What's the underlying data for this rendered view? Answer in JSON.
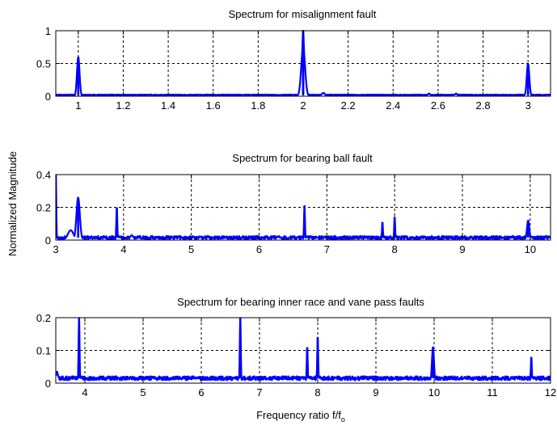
{
  "figure": {
    "ylabel": "Normalized Magnitude",
    "xlabel_main": "Frequency ratio f/f",
    "xlabel_sub": "o"
  },
  "chart_data": [
    {
      "type": "line",
      "title": "Spectrum for misalignment fault",
      "xlim": [
        0.9,
        3.1
      ],
      "ylim": [
        0,
        1
      ],
      "xticks": [
        1,
        1.2,
        1.4,
        1.6,
        1.8,
        2,
        2.2,
        2.4,
        2.6,
        2.8,
        3
      ],
      "xtick_labels": [
        "1",
        "1.2",
        "1.4",
        "1.6",
        "1.8",
        "2",
        "2.2",
        "2.4",
        "2.6",
        "2.8",
        "3"
      ],
      "yticks": [
        0,
        0.5,
        1
      ],
      "ytick_labels": [
        "0",
        "0.5",
        "1"
      ],
      "grid": true,
      "color": "#0000ff",
      "baseline": 0.02,
      "noise": 0.006,
      "peaks": [
        {
          "x": 1.0,
          "y": 0.6,
          "width": 0.008
        },
        {
          "x": 2.0,
          "y": 1.0,
          "width": 0.006
        },
        {
          "x": 2.0,
          "y": 0.75,
          "width": 0.012
        },
        {
          "x": 3.0,
          "y": 0.5,
          "width": 0.008
        }
      ],
      "bumps": [
        {
          "x": 2.09,
          "y": 0.05,
          "width": 0.01
        },
        {
          "x": 2.56,
          "y": 0.04,
          "width": 0.008
        },
        {
          "x": 2.68,
          "y": 0.04,
          "width": 0.008
        }
      ]
    },
    {
      "type": "line",
      "title": "Spectrum for bearing ball fault",
      "xlim": [
        3,
        10.3
      ],
      "ylim": [
        0,
        0.4
      ],
      "xticks": [
        3,
        4,
        5,
        6,
        7,
        8,
        9,
        10
      ],
      "xtick_labels": [
        "3",
        "4",
        "5",
        "6",
        "7",
        "8",
        "9",
        "10"
      ],
      "yticks": [
        0,
        0.2,
        0.4
      ],
      "ytick_labels": [
        "0",
        "0.2",
        "0.4"
      ],
      "grid": true,
      "color": "#0000ff",
      "baseline": 0.015,
      "noise": 0.01,
      "peaks": [
        {
          "x": 3.0,
          "y": 0.4,
          "width": 0.01
        },
        {
          "x": 3.33,
          "y": 0.26,
          "width": 0.035
        },
        {
          "x": 3.9,
          "y": 0.2,
          "width": 0.01
        },
        {
          "x": 6.67,
          "y": 0.21,
          "width": 0.01
        },
        {
          "x": 7.82,
          "y": 0.11,
          "width": 0.01
        },
        {
          "x": 8.0,
          "y": 0.14,
          "width": 0.01
        },
        {
          "x": 9.97,
          "y": 0.12,
          "width": 0.025
        }
      ],
      "bumps": [
        {
          "x": 3.22,
          "y": 0.06,
          "width": 0.06
        },
        {
          "x": 4.12,
          "y": 0.03,
          "width": 0.03
        }
      ]
    },
    {
      "type": "line",
      "title": "Spectrum for bearing inner race and vane pass faults",
      "xlim": [
        3.5,
        12
      ],
      "ylim": [
        0,
        0.2
      ],
      "xticks": [
        4,
        5,
        6,
        7,
        8,
        9,
        10,
        11,
        12
      ],
      "xtick_labels": [
        "4",
        "5",
        "6",
        "7",
        "8",
        "9",
        "10",
        "11",
        "12"
      ],
      "yticks": [
        0,
        0.1,
        0.2
      ],
      "ytick_labels": [
        "0",
        "0.1",
        "0.2"
      ],
      "grid": true,
      "color": "#0000ff",
      "baseline": 0.015,
      "noise": 0.006,
      "peaks": [
        {
          "x": 3.9,
          "y": 0.2,
          "width": 0.012
        },
        {
          "x": 6.67,
          "y": 0.2,
          "width": 0.012
        },
        {
          "x": 7.82,
          "y": 0.11,
          "width": 0.012
        },
        {
          "x": 8.0,
          "y": 0.14,
          "width": 0.012
        },
        {
          "x": 9.98,
          "y": 0.11,
          "width": 0.025
        },
        {
          "x": 11.67,
          "y": 0.08,
          "width": 0.012
        }
      ],
      "bumps": [
        {
          "x": 3.52,
          "y": 0.035,
          "width": 0.03
        }
      ]
    }
  ]
}
